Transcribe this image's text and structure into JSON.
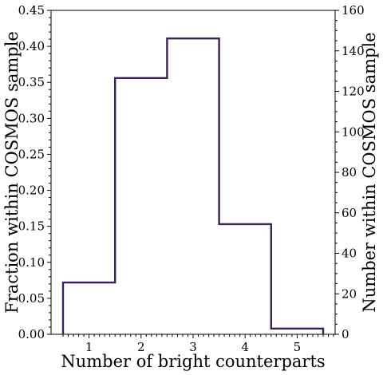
{
  "chart_data": {
    "type": "bar",
    "histtype": "step",
    "x": [
      1,
      2,
      3,
      4,
      5
    ],
    "bin_edges": [
      0.5,
      1.5,
      2.5,
      3.5,
      4.5,
      5.5
    ],
    "values": [
      0.072,
      0.356,
      0.411,
      0.153,
      0.008
    ],
    "right_axis_values": [
      26,
      128,
      148,
      55,
      3
    ],
    "series_color": "#3b1f5e",
    "xlabel": "Number of bright counterparts",
    "ylabel": "Fraction within COSMOS sample",
    "ylabel_right": "Number within COSMOS sample",
    "xlim": [
      0.27,
      5.73
    ],
    "ylim": [
      0,
      0.45
    ],
    "ylim_right": [
      0,
      160
    ],
    "xticks": [
      1,
      2,
      3,
      4,
      5
    ],
    "yticks": [
      "0.00",
      "0.05",
      "0.10",
      "0.15",
      "0.20",
      "0.25",
      "0.30",
      "0.35",
      "0.40",
      "0.45"
    ],
    "yticks_right": [
      "0",
      "20",
      "40",
      "60",
      "80",
      "100",
      "120",
      "140",
      "160"
    ],
    "grid": false,
    "legend": "none"
  }
}
